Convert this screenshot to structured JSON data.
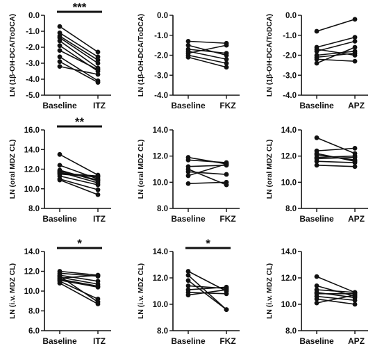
{
  "chart_data": [
    {
      "type": "line",
      "ylabel": "LN (1β-OH-DCA/ToDCA)",
      "categories": [
        "Baseline",
        "ITZ"
      ],
      "ylim": [
        -5.0,
        0.0
      ],
      "yticks": [
        "0.0",
        "-1.0",
        "-2.0",
        "-3.0",
        "-4.0",
        "-5.0"
      ],
      "significance": "***",
      "pairs": [
        [
          -0.7,
          -2.3
        ],
        [
          -1.1,
          -2.6
        ],
        [
          -1.3,
          -2.8
        ],
        [
          -1.6,
          -3.3
        ],
        [
          -1.9,
          -3.5
        ],
        [
          -2.2,
          -3.4
        ],
        [
          -2.6,
          -4.1
        ],
        [
          -2.9,
          -4.2
        ],
        [
          -3.2,
          -3.7
        ],
        [
          -1.4,
          -3.0
        ]
      ]
    },
    {
      "type": "line",
      "ylabel": "LN (1β-OH-DCA/ToDCA)",
      "categories": [
        "Baseline",
        "FKZ"
      ],
      "ylim": [
        -4.0,
        0.0
      ],
      "yticks": [
        "0.0",
        "-1.0",
        "-2.0",
        "-3.0",
        "-4.0"
      ],
      "significance": "",
      "pairs": [
        [
          -1.3,
          -1.4
        ],
        [
          -1.5,
          -2.0
        ],
        [
          -1.7,
          -1.9
        ],
        [
          -1.9,
          -1.5
        ],
        [
          -2.0,
          -2.4
        ],
        [
          -2.1,
          -2.6
        ],
        [
          -1.8,
          -2.2
        ]
      ]
    },
    {
      "type": "line",
      "ylabel": "LN (1β-OH-DCA/ToDCA)",
      "categories": [
        "Baseline",
        "APZ"
      ],
      "ylim": [
        -4.0,
        0.0
      ],
      "yticks": [
        "0.0",
        "-1.0",
        "-2.0",
        "-3.0",
        "-4.0"
      ],
      "significance": "",
      "pairs": [
        [
          -0.8,
          -0.2
        ],
        [
          -1.6,
          -1.1
        ],
        [
          -1.8,
          -1.3
        ],
        [
          -2.0,
          -1.8
        ],
        [
          -2.2,
          -2.3
        ],
        [
          -2.4,
          -1.6
        ],
        [
          -1.7,
          -2.0
        ],
        [
          -2.1,
          -1.9
        ]
      ]
    },
    {
      "type": "line",
      "ylabel": "LN (oral MDZ CL)",
      "categories": [
        "Baseline",
        "ITZ"
      ],
      "ylim": [
        8.0,
        16.0
      ],
      "yticks": [
        "16.0",
        "14.0",
        "12.0",
        "10.0",
        "8.0"
      ],
      "significance": "**",
      "pairs": [
        [
          13.5,
          11.4
        ],
        [
          12.4,
          11.0
        ],
        [
          11.9,
          10.8
        ],
        [
          11.7,
          10.6
        ],
        [
          11.5,
          11.2
        ],
        [
          11.3,
          10.4
        ],
        [
          11.0,
          9.9
        ],
        [
          10.9,
          9.4
        ],
        [
          11.8,
          10.9
        ],
        [
          11.6,
          11.3
        ]
      ]
    },
    {
      "type": "line",
      "ylabel": "LN (oral MDZ CL)",
      "categories": [
        "Baseline",
        "FKZ"
      ],
      "ylim": [
        8.0,
        14.0
      ],
      "yticks": [
        "14.0",
        "12.0",
        "10.0",
        "8.0"
      ],
      "significance": "",
      "pairs": [
        [
          11.9,
          11.4
        ],
        [
          11.7,
          11.5
        ],
        [
          11.2,
          11.3
        ],
        [
          10.8,
          10.6
        ],
        [
          10.5,
          11.4
        ],
        [
          9.9,
          10.0
        ],
        [
          11.0,
          9.8
        ]
      ]
    },
    {
      "type": "line",
      "ylabel": "LN (oral MDZ CL)",
      "categories": [
        "Baseline",
        "APZ"
      ],
      "ylim": [
        8.0,
        14.0
      ],
      "yticks": [
        "14.0",
        "12.0",
        "10.0",
        "8.0"
      ],
      "significance": "",
      "pairs": [
        [
          13.4,
          12.2
        ],
        [
          12.4,
          12.6
        ],
        [
          12.1,
          11.7
        ],
        [
          11.9,
          12.0
        ],
        [
          11.6,
          11.5
        ],
        [
          11.3,
          11.2
        ],
        [
          11.8,
          11.9
        ],
        [
          12.2,
          11.6
        ]
      ]
    },
    {
      "type": "line",
      "ylabel": "LN (i.v. MDZ CL)",
      "categories": [
        "Baseline",
        "ITZ"
      ],
      "ylim": [
        6.0,
        14.0
      ],
      "yticks": [
        "14.0",
        "12.0",
        "10.0",
        "8.0",
        "6.0"
      ],
      "significance": "*",
      "pairs": [
        [
          12.0,
          11.6
        ],
        [
          11.8,
          11.5
        ],
        [
          11.6,
          11.0
        ],
        [
          11.4,
          10.7
        ],
        [
          11.2,
          10.5
        ],
        [
          11.0,
          9.2
        ],
        [
          10.8,
          8.7
        ],
        [
          11.5,
          8.9
        ],
        [
          11.3,
          11.6
        ],
        [
          11.1,
          10.4
        ]
      ]
    },
    {
      "type": "line",
      "ylabel": "LN (i.v. MDZ CL)",
      "categories": [
        "Baseline",
        "FKZ"
      ],
      "ylim": [
        8.0,
        14.0
      ],
      "yticks": [
        "14.0",
        "12.0",
        "10.0",
        "8.0"
      ],
      "significance": "*",
      "pairs": [
        [
          12.5,
          11.0
        ],
        [
          12.2,
          9.6
        ],
        [
          11.4,
          11.2
        ],
        [
          11.1,
          11.3
        ],
        [
          10.9,
          10.8
        ],
        [
          10.7,
          11.1
        ],
        [
          11.8,
          9.6
        ]
      ]
    },
    {
      "type": "line",
      "ylabel": "LN (i.v. MDZ CL)",
      "categories": [
        "Baseline",
        "APZ"
      ],
      "ylim": [
        8.0,
        14.0
      ],
      "yticks": [
        "14.0",
        "12.0",
        "10.0",
        "8.0"
      ],
      "significance": "",
      "pairs": [
        [
          12.1,
          10.9
        ],
        [
          11.4,
          10.6
        ],
        [
          11.1,
          10.9
        ],
        [
          10.9,
          10.5
        ],
        [
          10.6,
          10.3
        ],
        [
          10.4,
          10.0
        ],
        [
          10.1,
          10.7
        ],
        [
          10.8,
          10.8
        ]
      ]
    }
  ]
}
